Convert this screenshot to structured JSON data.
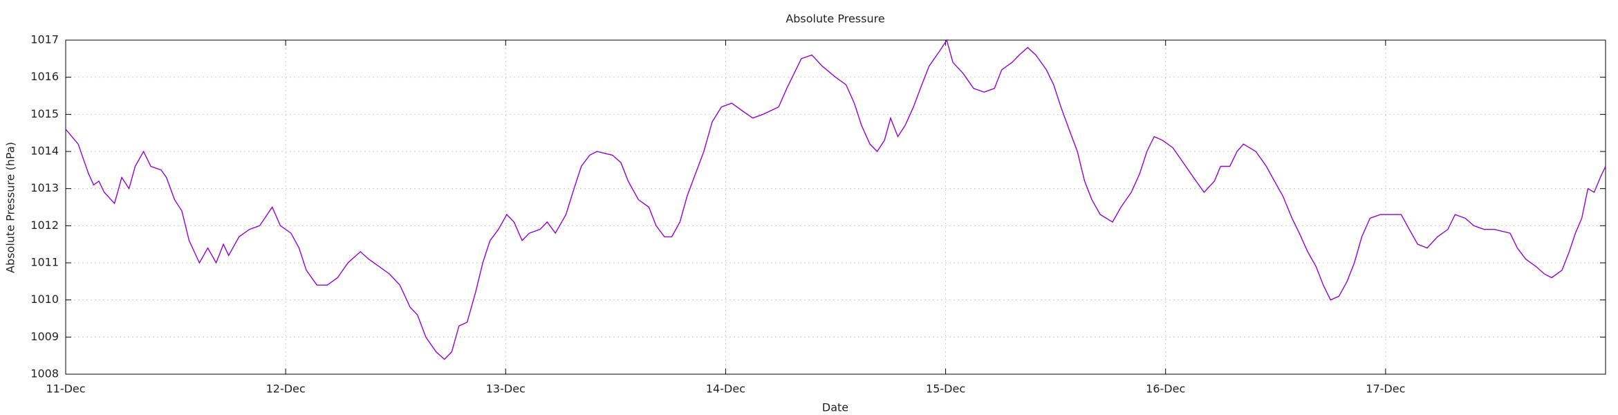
{
  "chart_data": {
    "type": "line",
    "title": "Absolute Pressure",
    "x_label": "Date",
    "y_label": "Absolute Pressure (hPa)",
    "xlim": [
      0,
      7
    ],
    "xticks": [
      {
        "value": 0,
        "label": "11-Dec"
      },
      {
        "value": 1,
        "label": "12-Dec"
      },
      {
        "value": 2,
        "label": "13-Dec"
      },
      {
        "value": 3,
        "label": "14-Dec"
      },
      {
        "value": 4,
        "label": "15-Dec"
      },
      {
        "value": 5,
        "label": "16-Dec"
      },
      {
        "value": 6,
        "label": "17-Dec"
      }
    ],
    "ylim": [
      1008,
      1017
    ],
    "yticks": [
      1008,
      1009,
      1010,
      1011,
      1012,
      1013,
      1014,
      1015,
      1016,
      1017
    ],
    "grid": true,
    "series": [
      {
        "color": "#9400d3",
        "x": [
          0,
          0.057,
          0.08,
          0.104,
          0.127,
          0.151,
          0.175,
          0.222,
          0.255,
          0.288,
          0.316,
          0.354,
          0.387,
          0.434,
          0.458,
          0.495,
          0.528,
          0.561,
          0.608,
          0.646,
          0.684,
          0.717,
          0.741,
          0.788,
          0.835,
          0.882,
          0.939,
          0.976,
          1.024,
          1.061,
          1.094,
          1.142,
          1.189,
          1.236,
          1.283,
          1.34,
          1.377,
          1.425,
          1.472,
          1.519,
          1.566,
          1.599,
          1.637,
          1.684,
          1.722,
          1.755,
          1.788,
          1.825,
          1.863,
          1.896,
          1.929,
          1.967,
          2.005,
          2.038,
          2.075,
          2.108,
          2.156,
          2.189,
          2.226,
          2.274,
          2.311,
          2.344,
          2.382,
          2.415,
          2.486,
          2.524,
          2.557,
          2.604,
          2.651,
          2.684,
          2.722,
          2.755,
          2.792,
          2.825,
          2.863,
          2.901,
          2.939,
          2.981,
          3.028,
          3.075,
          3.123,
          3.17,
          3.241,
          3.278,
          3.311,
          3.344,
          3.392,
          3.439,
          3.5,
          3.547,
          3.585,
          3.618,
          3.656,
          3.689,
          3.722,
          3.75,
          3.783,
          3.816,
          3.854,
          3.892,
          3.925,
          3.972,
          4.005,
          4.033,
          4.08,
          4.127,
          4.175,
          4.222,
          4.255,
          4.302,
          4.335,
          4.373,
          4.41,
          4.458,
          4.491,
          4.524,
          4.561,
          4.599,
          4.632,
          4.665,
          4.703,
          4.759,
          4.797,
          4.844,
          4.882,
          4.915,
          4.948,
          4.986,
          5.033,
          5.08,
          5.127,
          5.175,
          5.222,
          5.25,
          5.292,
          5.325,
          5.354,
          5.41,
          5.458,
          5.495,
          5.533,
          5.575,
          5.608,
          5.646,
          5.684,
          5.717,
          5.75,
          5.788,
          5.825,
          5.858,
          5.892,
          5.929,
          5.976,
          6.024,
          6.071,
          6.108,
          6.146,
          6.189,
          6.236,
          6.283,
          6.316,
          6.363,
          6.401,
          6.448,
          6.495,
          6.566,
          6.599,
          6.637,
          6.684,
          6.722,
          6.755,
          6.802,
          6.835,
          6.863,
          6.892,
          6.92,
          6.948,
          6.976,
          7.0
        ],
        "values": [
          1014.6,
          1014.2,
          1013.8,
          1013.4,
          1013.1,
          1013.2,
          1012.9,
          1012.6,
          1013.3,
          1013.0,
          1013.6,
          1014.0,
          1013.6,
          1013.5,
          1013.3,
          1012.7,
          1012.4,
          1011.6,
          1011.0,
          1011.4,
          1011.0,
          1011.5,
          1011.2,
          1011.7,
          1011.9,
          1012.0,
          1012.5,
          1012.0,
          1011.8,
          1011.4,
          1010.8,
          1010.4,
          1010.4,
          1010.6,
          1011.0,
          1011.3,
          1011.1,
          1010.9,
          1010.7,
          1010.4,
          1009.8,
          1009.6,
          1009.0,
          1008.6,
          1008.4,
          1008.6,
          1009.3,
          1009.4,
          1010.2,
          1011.0,
          1011.6,
          1011.9,
          1012.3,
          1012.1,
          1011.6,
          1011.8,
          1011.9,
          1012.1,
          1011.8,
          1012.3,
          1013.0,
          1013.6,
          1013.9,
          1014.0,
          1013.9,
          1013.7,
          1013.2,
          1012.7,
          1012.5,
          1012.0,
          1011.7,
          1011.7,
          1012.1,
          1012.8,
          1013.4,
          1014.0,
          1014.8,
          1015.2,
          1015.3,
          1015.1,
          1014.9,
          1015.0,
          1015.2,
          1015.7,
          1016.1,
          1016.5,
          1016.6,
          1016.3,
          1016.0,
          1015.8,
          1015.3,
          1014.7,
          1014.2,
          1014.0,
          1014.3,
          1014.9,
          1014.4,
          1014.7,
          1015.2,
          1015.8,
          1016.3,
          1016.7,
          1017.0,
          1016.4,
          1016.1,
          1015.7,
          1015.6,
          1015.7,
          1016.2,
          1016.4,
          1016.6,
          1016.8,
          1016.6,
          1016.2,
          1015.8,
          1015.2,
          1014.6,
          1014.0,
          1013.2,
          1012.7,
          1012.3,
          1012.1,
          1012.5,
          1012.9,
          1013.4,
          1014.0,
          1014.4,
          1014.3,
          1014.1,
          1013.7,
          1013.3,
          1012.9,
          1013.2,
          1013.6,
          1013.6,
          1014.0,
          1014.2,
          1014.0,
          1013.6,
          1013.2,
          1012.8,
          1012.2,
          1011.8,
          1011.3,
          1010.9,
          1010.4,
          1010.0,
          1010.1,
          1010.5,
          1011.0,
          1011.7,
          1012.2,
          1012.3,
          1012.3,
          1012.3,
          1011.9,
          1011.5,
          1011.4,
          1011.7,
          1011.9,
          1012.3,
          1012.2,
          1012.0,
          1011.9,
          1011.9,
          1011.8,
          1011.4,
          1011.1,
          1010.9,
          1010.7,
          1010.6,
          1010.8,
          1011.3,
          1011.8,
          1012.2,
          1013.0,
          1012.9,
          1013.3,
          1013.6
        ]
      }
    ]
  }
}
